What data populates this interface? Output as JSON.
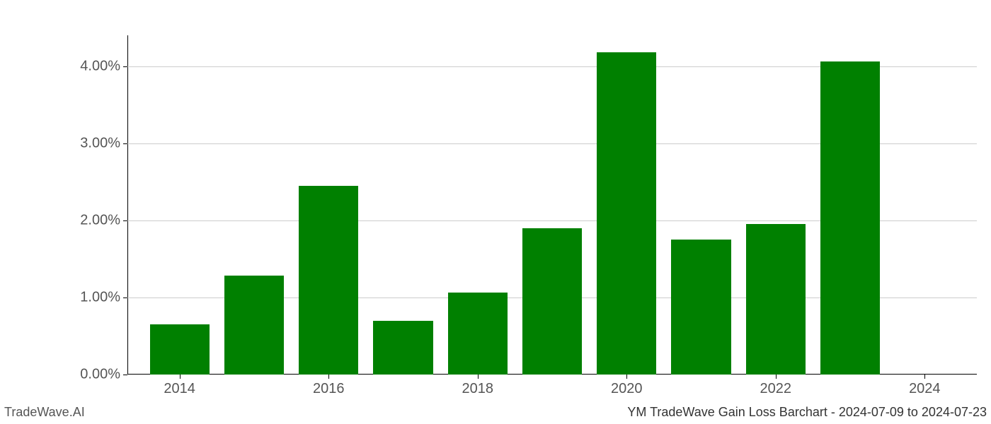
{
  "chart": {
    "type": "bar",
    "background_color": "#ffffff",
    "grid_color": "#cccccc",
    "axis_color": "#000000",
    "bar_color": "#008000",
    "text_color": "#555555",
    "ylim": [
      0,
      4.4
    ],
    "yticks": [
      {
        "value": 0,
        "label": "0.00%"
      },
      {
        "value": 1,
        "label": "1.00%"
      },
      {
        "value": 2,
        "label": "2.00%"
      },
      {
        "value": 3,
        "label": "3.00%"
      },
      {
        "value": 4,
        "label": "4.00%"
      }
    ],
    "xticks": [
      {
        "year": 2014,
        "label": "2014"
      },
      {
        "year": 2016,
        "label": "2016"
      },
      {
        "year": 2018,
        "label": "2018"
      },
      {
        "year": 2020,
        "label": "2020"
      },
      {
        "year": 2022,
        "label": "2022"
      },
      {
        "year": 2024,
        "label": "2024"
      }
    ],
    "x_range": [
      2013.3,
      2024.7
    ],
    "bar_width_years": 0.8,
    "bars": [
      {
        "year": 2014,
        "value": 0.65
      },
      {
        "year": 2015,
        "value": 1.28
      },
      {
        "year": 2016,
        "value": 2.45
      },
      {
        "year": 2017,
        "value": 0.7
      },
      {
        "year": 2018,
        "value": 1.06
      },
      {
        "year": 2019,
        "value": 1.9
      },
      {
        "year": 2020,
        "value": 4.18
      },
      {
        "year": 2021,
        "value": 1.75
      },
      {
        "year": 2022,
        "value": 1.95
      },
      {
        "year": 2023,
        "value": 4.06
      }
    ],
    "tick_label_fontsize": 20
  },
  "footer": {
    "left": "TradeWave.AI",
    "right": "YM TradeWave Gain Loss Barchart - 2024-07-09 to 2024-07-23",
    "fontsize": 18
  }
}
